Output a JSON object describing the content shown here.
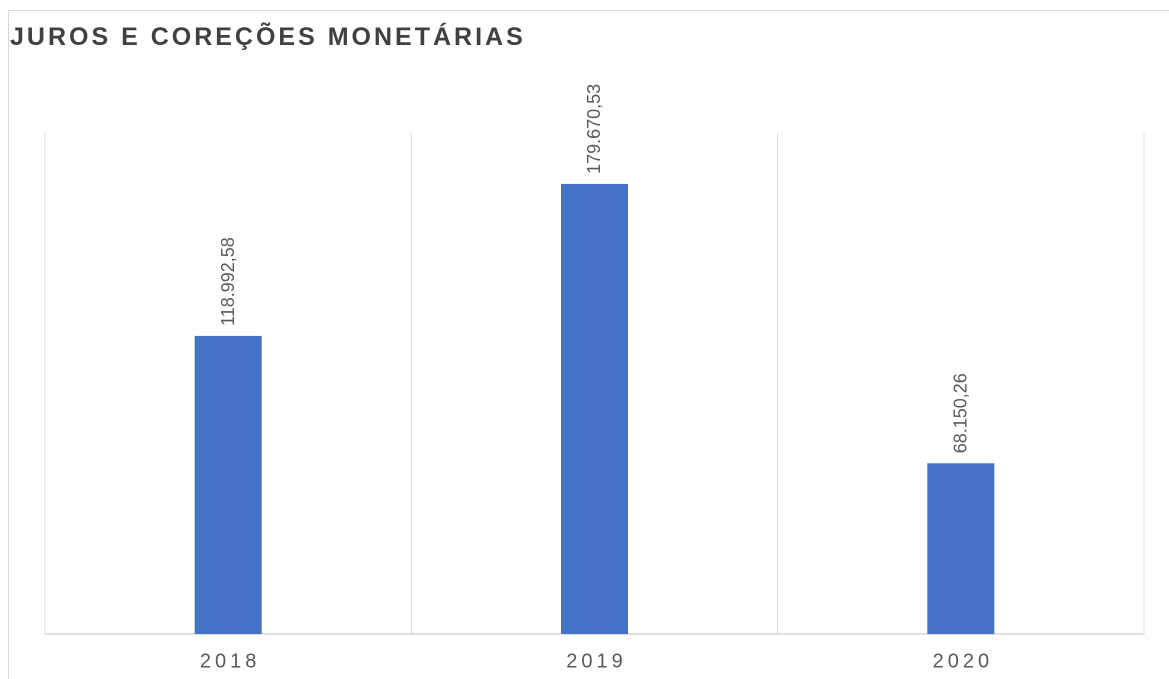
{
  "chart_data": {
    "type": "bar",
    "title": "JUROS E COREÇÕES MONETÁRIAS",
    "categories": [
      "2018",
      "2019",
      "2020"
    ],
    "values": [
      118992.58,
      179670.53,
      68150.26
    ],
    "value_labels": [
      "118.992,58",
      "179.670,53",
      "68.150,26"
    ],
    "color": "#4472c4",
    "ylim": [
      0,
      200000
    ]
  }
}
